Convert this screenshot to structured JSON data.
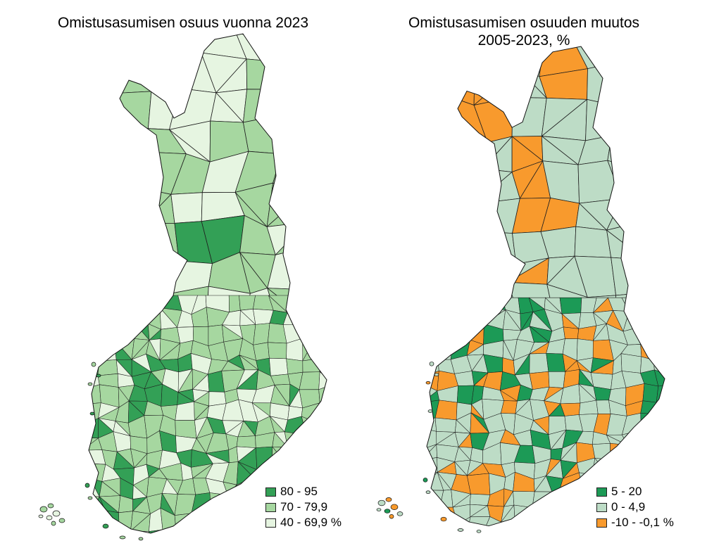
{
  "maps": [
    {
      "title": "Omistusasumisen osuus vuonna 2023",
      "legend": [
        {
          "label": "80 - 95",
          "color": "#33a056"
        },
        {
          "label": "70 - 79,9",
          "color": "#a6d7a0"
        },
        {
          "label": "40 - 69,9 %",
          "color": "#e6f5e1"
        }
      ]
    },
    {
      "title_lines": [
        "Omistusasumisen osuuden muutos",
        "2005-2023, %"
      ],
      "legend": [
        {
          "label": "5 - 20",
          "color": "#1c9a56"
        },
        {
          "label": "0 - 4,9",
          "color": "#bddcc6"
        },
        {
          "label": "-10 - -0,1 %",
          "color": "#f89a2d"
        }
      ]
    }
  ]
}
